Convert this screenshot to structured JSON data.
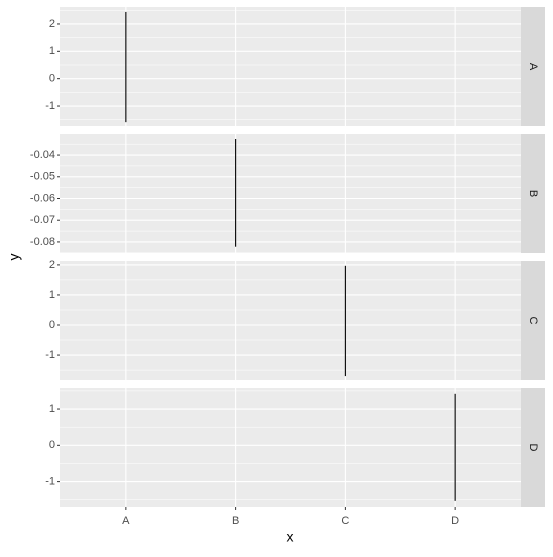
{
  "chart_data": {
    "type": "linerange",
    "xlabel": "x",
    "ylabel": "y",
    "categories": [
      "A",
      "B",
      "C",
      "D"
    ],
    "color": "#000000",
    "grid": true,
    "facets": [
      {
        "strip": "A",
        "ylim": [
          -1.73,
          2.62
        ],
        "yticks": [
          -1,
          0,
          1,
          2
        ],
        "ymin": [
          -1.59,
          null,
          null,
          null
        ],
        "ymax": [
          2.44,
          null,
          null,
          null
        ]
      },
      {
        "strip": "B",
        "ylim": [
          -0.0851,
          -0.0303
        ],
        "yticks": [
          -0.08,
          -0.07,
          -0.06,
          -0.05,
          -0.04
        ],
        "ymin": [
          null,
          -0.0822,
          null,
          null
        ],
        "ymax": [
          null,
          -0.0326,
          null,
          null
        ]
      },
      {
        "strip": "C",
        "ylim": [
          -1.83,
          2.13
        ],
        "yticks": [
          -1,
          0,
          1,
          2
        ],
        "ymin": [
          null,
          null,
          -1.7,
          null
        ],
        "ymax": [
          null,
          null,
          1.97,
          null
        ]
      },
      {
        "strip": "D",
        "ylim": [
          -1.7,
          1.58
        ],
        "yticks": [
          -1,
          0,
          1
        ],
        "ymin": [
          null,
          null,
          null,
          -1.53
        ],
        "ymax": [
          null,
          null,
          null,
          1.42
        ]
      }
    ]
  }
}
